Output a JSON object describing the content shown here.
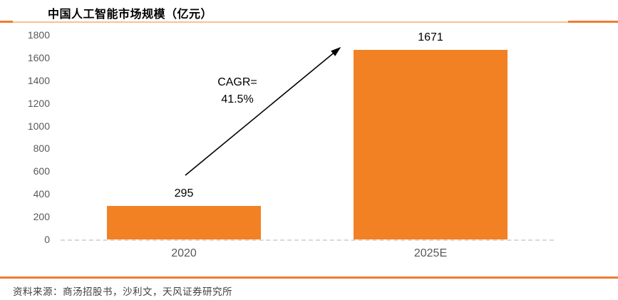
{
  "header": {
    "title": "中国人工智能市场规模（亿元）"
  },
  "chart_data": {
    "type": "bar",
    "title": "中国人工智能市场规模（亿元）",
    "categories": [
      "2020",
      "2025E"
    ],
    "values": [
      295,
      1671
    ],
    "value_labels": [
      "295",
      "1671"
    ],
    "xlabel": "",
    "ylabel": "",
    "ylim": [
      0,
      1800
    ],
    "yticks": [
      0,
      200,
      400,
      600,
      800,
      1000,
      1200,
      1400,
      1600,
      1800
    ],
    "grid": false,
    "legend_position": "none",
    "bar_color": "#F28124",
    "annotation": {
      "line1": "CAGR=",
      "line2": "41.5%"
    }
  },
  "footer": {
    "source": "资料来源：商汤招股书，沙利文，天风证券研究所"
  },
  "colors": {
    "bar": "#F28124",
    "divider_dark": "#ED7D31",
    "divider_light": "#FAC08F",
    "axis_text": "#595959",
    "baseline": "#D8D8D8",
    "annotation_text": "#000000",
    "source_text": "#404040"
  }
}
